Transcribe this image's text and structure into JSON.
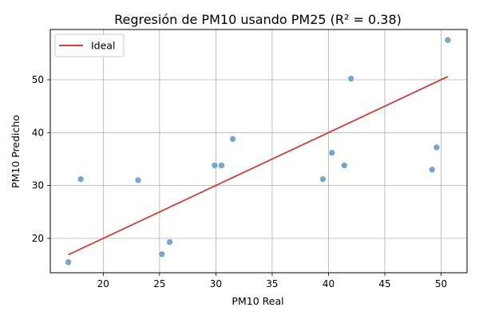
{
  "chart_data": {
    "type": "scatter",
    "title": "Regresión de PM10 usando PM25 (R² = 0.38)",
    "xlabel": "PM10 Real",
    "ylabel": "PM10 Predicho",
    "xlim": [
      15.3,
      52.3
    ],
    "ylim": [
      13.5,
      59.5
    ],
    "xticks": [
      20,
      25,
      30,
      35,
      40,
      45,
      50
    ],
    "yticks": [
      20,
      30,
      40,
      50
    ],
    "grid": true,
    "legend_position": "top-left",
    "series": [
      {
        "type": "scatter",
        "color": "#6fa3cc",
        "points": [
          [
            16.9,
            15.5
          ],
          [
            18.0,
            31.2
          ],
          [
            23.1,
            31.0
          ],
          [
            25.2,
            17.0
          ],
          [
            25.9,
            19.3
          ],
          [
            29.9,
            33.8
          ],
          [
            30.5,
            33.8
          ],
          [
            31.5,
            38.8
          ],
          [
            39.5,
            31.2
          ],
          [
            40.3,
            36.2
          ],
          [
            41.4,
            33.8
          ],
          [
            42.0,
            50.2
          ],
          [
            49.2,
            33.0
          ],
          [
            49.6,
            37.2
          ],
          [
            50.6,
            57.5
          ]
        ]
      },
      {
        "type": "line",
        "name": "Ideal",
        "color": "#e8201c",
        "points": [
          [
            16.9,
            16.9
          ],
          [
            50.6,
            50.6
          ]
        ]
      }
    ]
  }
}
